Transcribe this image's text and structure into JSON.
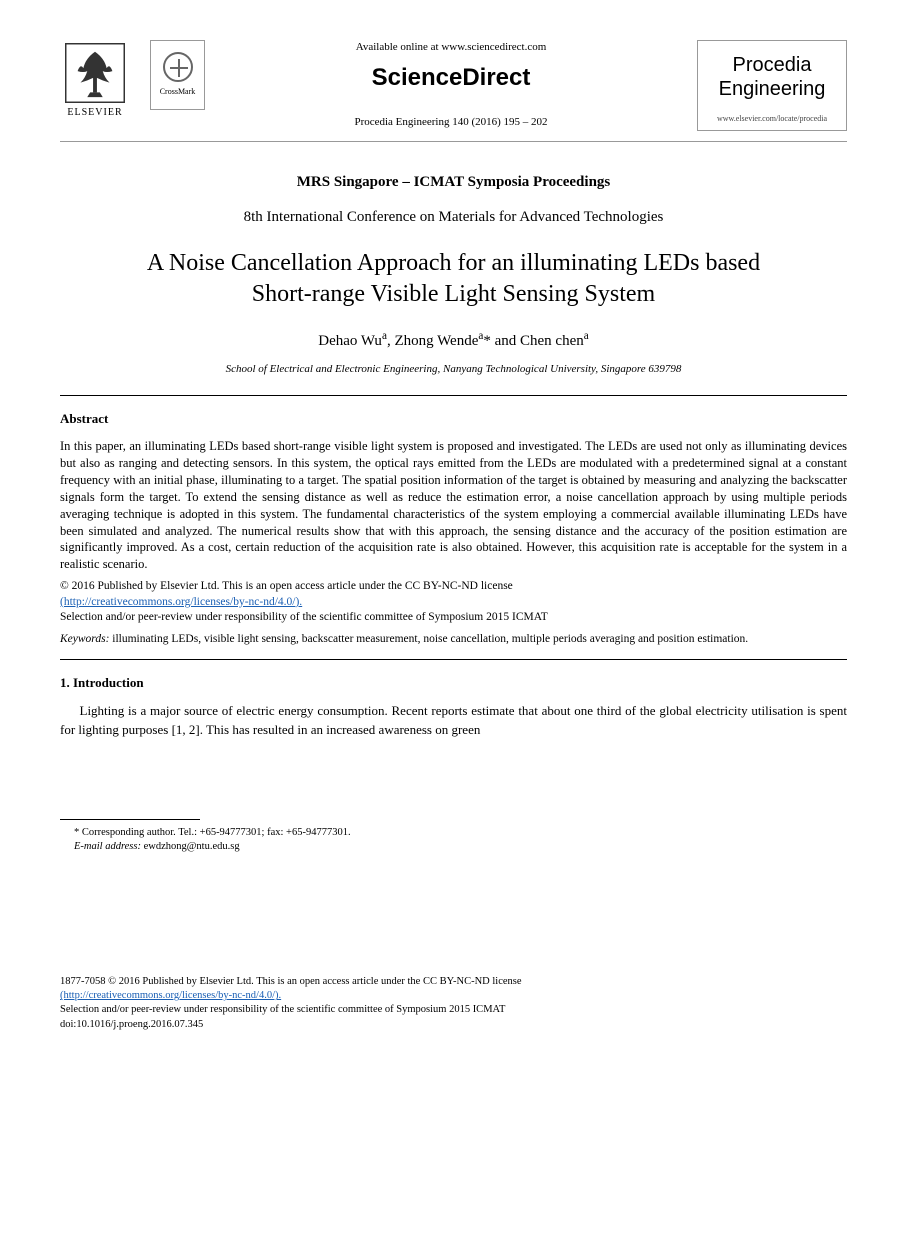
{
  "header": {
    "elsevier_label": "ELSEVIER",
    "crossmark_label": "CrossMark",
    "available_text": "Available online at www.sciencedirect.com",
    "sciencedirect": "ScienceDirect",
    "citation": "Procedia Engineering 140 (2016) 195 – 202",
    "journal_name_line1": "Procedia",
    "journal_name_line2": "Engineering",
    "journal_url": "www.elsevier.com/locate/procedia"
  },
  "proceedings_title": "MRS Singapore – ICMAT Symposia Proceedings",
  "conference_title": "8th International Conference on Materials for Advanced Technologies",
  "paper_title_line1": "A Noise Cancellation Approach for an illuminating LEDs based",
  "paper_title_line2": "Short-range Visible Light Sensing System",
  "authors_html": "Dehao Wu<sup>a</sup>, Zhong Wende<sup>a</sup>* and Chen chen<sup>a</sup>",
  "affiliation": "School of Electrical and Electronic Engineering, Nanyang Technological University, Singapore 639798",
  "abstract": {
    "heading": "Abstract",
    "body": "In this paper, an illuminating LEDs based short-range visible light system is proposed and investigated. The LEDs are used not only as illuminating devices but also as ranging and detecting sensors. In this system, the optical rays emitted from the LEDs are modulated with a predetermined signal at a constant frequency with an initial phase, illuminating to a target. The spatial position information of the target is obtained by measuring and analyzing the backscatter signals form the target. To extend the sensing distance as well as reduce the estimation error, a noise cancellation approach by using multiple periods averaging technique is adopted in this system. The fundamental characteristics of the system employing a commercial available illuminating LEDs have been simulated and analyzed. The numerical results show that with this approach, the sensing distance and the accuracy of the position estimation are significantly improved. As a cost, certain reduction of the acquisition rate is also obtained. However, this acquisition rate is acceptable for the system in a realistic scenario.",
    "license_line1": "© 2016 Published by Elsevier Ltd. This is an open access article under the CC BY-NC-ND license",
    "license_url_text": "(http://creativecommons.org/licenses/by-nc-nd/4.0/).",
    "license_url": "http://creativecommons.org/licenses/by-nc-nd/4.0/",
    "peer_review": "Selection and/or peer-review under responsibility of the scientific committee of Symposium 2015 ICMAT",
    "keywords_label": "Keywords:",
    "keywords_text": " illuminating LEDs, visible light sensing, backscatter measurement, noise cancellation, multiple periods averaging and position estimation."
  },
  "introduction": {
    "heading": "1. Introduction",
    "body": "Lighting is a major source of electric energy consumption. Recent reports estimate that about one third of the global electricity utilisation is spent for lighting purposes [1, 2]. This has resulted in an increased awareness on green"
  },
  "footnote": {
    "corresponding": "* Corresponding author. Tel.: +65-94777301; fax: +65-94777301.",
    "email_label": "E-mail address:",
    "email": " ewdzhong@ntu.edu.sg"
  },
  "footer": {
    "issn_line": "1877-7058 © 2016 Published by Elsevier Ltd. This is an open access article under the CC BY-NC-ND license",
    "license_url_text": "(http://creativecommons.org/licenses/by-nc-nd/4.0/).",
    "peer_review": "Selection and/or peer-review under responsibility of the scientific committee of Symposium 2015 ICMAT",
    "doi": "doi:10.1016/j.proeng.2016.07.345"
  },
  "colors": {
    "text": "#000000",
    "link": "#1a5fb4",
    "divider": "#999999",
    "background": "#ffffff"
  }
}
